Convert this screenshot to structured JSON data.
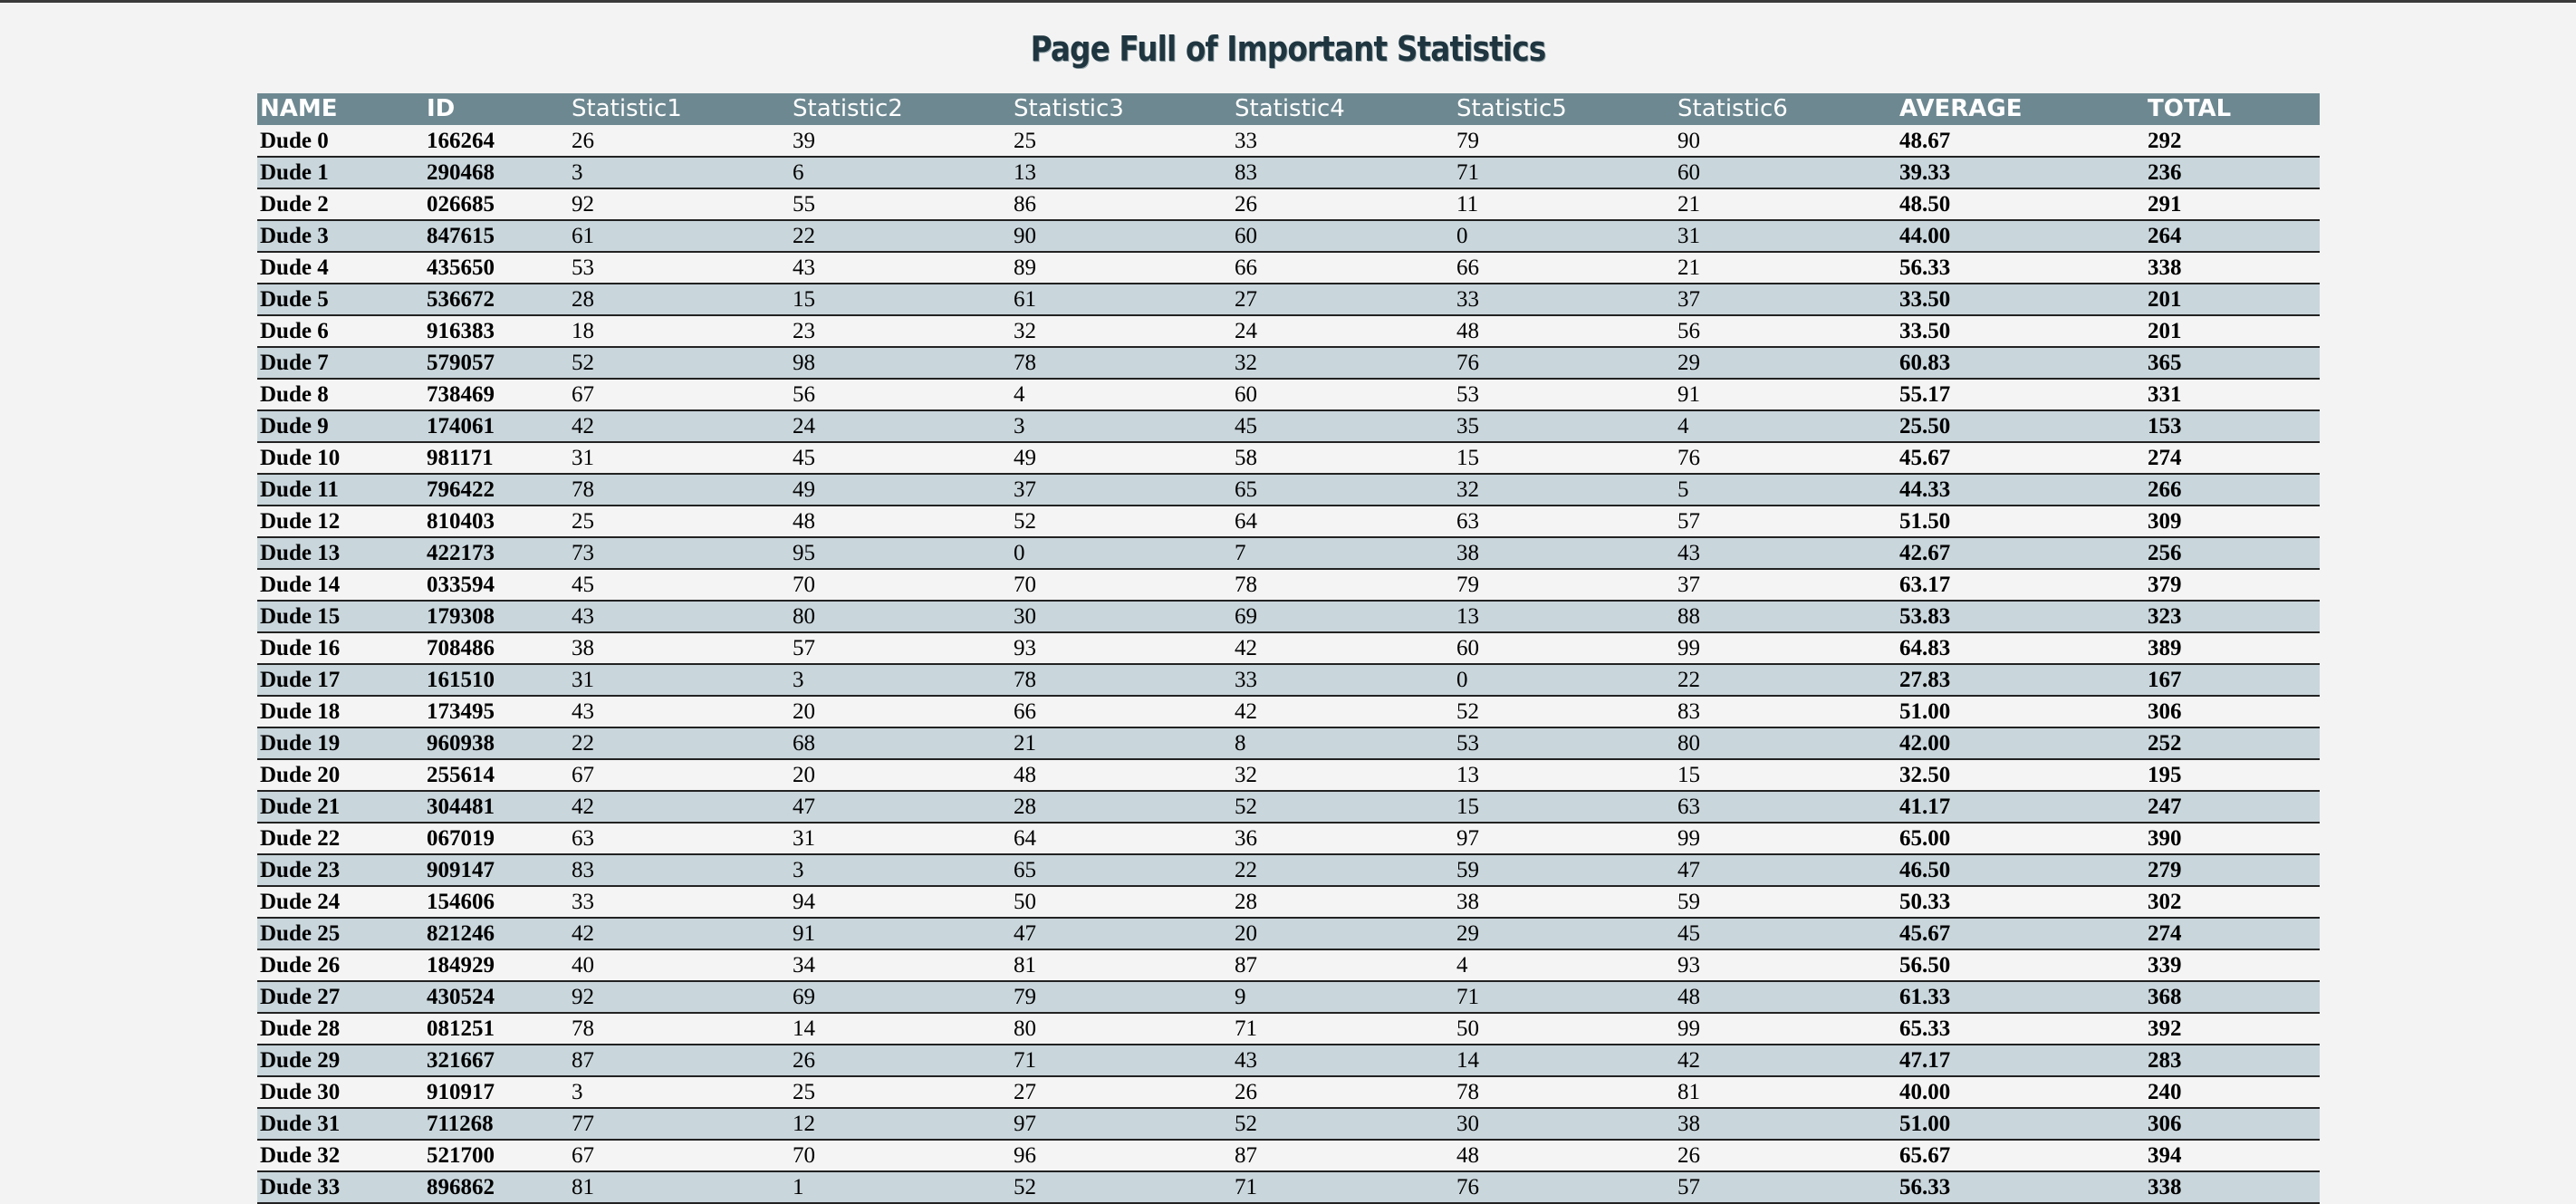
{
  "page": {
    "title": "Page Full of Important Statistics"
  },
  "table": {
    "headers": [
      "NAME",
      "ID",
      "Statistic1",
      "Statistic2",
      "Statistic3",
      "Statistic4",
      "Statistic5",
      "Statistic6",
      "AVERAGE",
      "TOTAL"
    ],
    "rows": [
      [
        "Dude 0",
        "166264",
        "26",
        "39",
        "25",
        "33",
        "79",
        "90",
        "48.67",
        "292"
      ],
      [
        "Dude 1",
        "290468",
        "3",
        "6",
        "13",
        "83",
        "71",
        "60",
        "39.33",
        "236"
      ],
      [
        "Dude 2",
        "026685",
        "92",
        "55",
        "86",
        "26",
        "11",
        "21",
        "48.50",
        "291"
      ],
      [
        "Dude 3",
        "847615",
        "61",
        "22",
        "90",
        "60",
        "0",
        "31",
        "44.00",
        "264"
      ],
      [
        "Dude 4",
        "435650",
        "53",
        "43",
        "89",
        "66",
        "66",
        "21",
        "56.33",
        "338"
      ],
      [
        "Dude 5",
        "536672",
        "28",
        "15",
        "61",
        "27",
        "33",
        "37",
        "33.50",
        "201"
      ],
      [
        "Dude 6",
        "916383",
        "18",
        "23",
        "32",
        "24",
        "48",
        "56",
        "33.50",
        "201"
      ],
      [
        "Dude 7",
        "579057",
        "52",
        "98",
        "78",
        "32",
        "76",
        "29",
        "60.83",
        "365"
      ],
      [
        "Dude 8",
        "738469",
        "67",
        "56",
        "4",
        "60",
        "53",
        "91",
        "55.17",
        "331"
      ],
      [
        "Dude 9",
        "174061",
        "42",
        "24",
        "3",
        "45",
        "35",
        "4",
        "25.50",
        "153"
      ],
      [
        "Dude 10",
        "981171",
        "31",
        "45",
        "49",
        "58",
        "15",
        "76",
        "45.67",
        "274"
      ],
      [
        "Dude 11",
        "796422",
        "78",
        "49",
        "37",
        "65",
        "32",
        "5",
        "44.33",
        "266"
      ],
      [
        "Dude 12",
        "810403",
        "25",
        "48",
        "52",
        "64",
        "63",
        "57",
        "51.50",
        "309"
      ],
      [
        "Dude 13",
        "422173",
        "73",
        "95",
        "0",
        "7",
        "38",
        "43",
        "42.67",
        "256"
      ],
      [
        "Dude 14",
        "033594",
        "45",
        "70",
        "70",
        "78",
        "79",
        "37",
        "63.17",
        "379"
      ],
      [
        "Dude 15",
        "179308",
        "43",
        "80",
        "30",
        "69",
        "13",
        "88",
        "53.83",
        "323"
      ],
      [
        "Dude 16",
        "708486",
        "38",
        "57",
        "93",
        "42",
        "60",
        "99",
        "64.83",
        "389"
      ],
      [
        "Dude 17",
        "161510",
        "31",
        "3",
        "78",
        "33",
        "0",
        "22",
        "27.83",
        "167"
      ],
      [
        "Dude 18",
        "173495",
        "43",
        "20",
        "66",
        "42",
        "52",
        "83",
        "51.00",
        "306"
      ],
      [
        "Dude 19",
        "960938",
        "22",
        "68",
        "21",
        "8",
        "53",
        "80",
        "42.00",
        "252"
      ],
      [
        "Dude 20",
        "255614",
        "67",
        "20",
        "48",
        "32",
        "13",
        "15",
        "32.50",
        "195"
      ],
      [
        "Dude 21",
        "304481",
        "42",
        "47",
        "28",
        "52",
        "15",
        "63",
        "41.17",
        "247"
      ],
      [
        "Dude 22",
        "067019",
        "63",
        "31",
        "64",
        "36",
        "97",
        "99",
        "65.00",
        "390"
      ],
      [
        "Dude 23",
        "909147",
        "83",
        "3",
        "65",
        "22",
        "59",
        "47",
        "46.50",
        "279"
      ],
      [
        "Dude 24",
        "154606",
        "33",
        "94",
        "50",
        "28",
        "38",
        "59",
        "50.33",
        "302"
      ],
      [
        "Dude 25",
        "821246",
        "42",
        "91",
        "47",
        "20",
        "29",
        "45",
        "45.67",
        "274"
      ],
      [
        "Dude 26",
        "184929",
        "40",
        "34",
        "81",
        "87",
        "4",
        "93",
        "56.50",
        "339"
      ],
      [
        "Dude 27",
        "430524",
        "92",
        "69",
        "79",
        "9",
        "71",
        "48",
        "61.33",
        "368"
      ],
      [
        "Dude 28",
        "081251",
        "78",
        "14",
        "80",
        "71",
        "50",
        "99",
        "65.33",
        "392"
      ],
      [
        "Dude 29",
        "321667",
        "87",
        "26",
        "71",
        "43",
        "14",
        "42",
        "47.17",
        "283"
      ],
      [
        "Dude 30",
        "910917",
        "3",
        "25",
        "27",
        "26",
        "78",
        "81",
        "40.00",
        "240"
      ],
      [
        "Dude 31",
        "711268",
        "77",
        "12",
        "97",
        "52",
        "30",
        "38",
        "51.00",
        "306"
      ],
      [
        "Dude 32",
        "521700",
        "67",
        "70",
        "96",
        "87",
        "48",
        "26",
        "65.67",
        "394"
      ],
      [
        "Dude 33",
        "896862",
        "81",
        "1",
        "52",
        "71",
        "76",
        "57",
        "56.33",
        "338"
      ]
    ]
  }
}
